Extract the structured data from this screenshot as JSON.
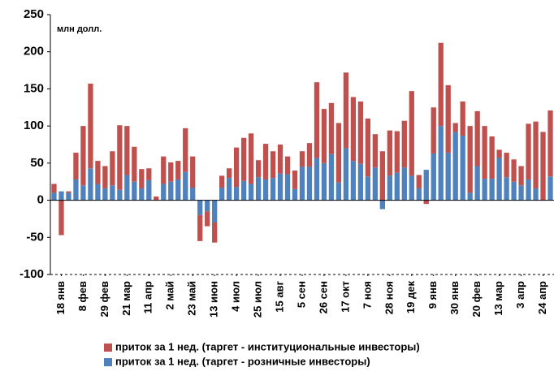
{
  "chart_data": {
    "type": "stacked_bar",
    "annotation": "млн долл.",
    "categories": [
      null,
      "18 янв",
      null,
      null,
      "8 фев",
      null,
      null,
      "29 фев",
      null,
      null,
      "21 мар",
      null,
      null,
      "11 апр",
      null,
      null,
      "2 май",
      null,
      null,
      "23 май",
      null,
      null,
      "13 июн",
      null,
      null,
      "4 июл",
      null,
      null,
      "25 июл",
      null,
      null,
      "15 авг",
      null,
      null,
      "5 сен",
      null,
      null,
      "26 сен",
      null,
      null,
      "17 окт",
      null,
      null,
      "7 ноя",
      null,
      null,
      "28 ноя",
      null,
      null,
      "19 дек",
      null,
      null,
      "9 янв",
      null,
      null,
      "30 янв",
      null,
      null,
      "20 фев",
      null,
      null,
      "13 мар",
      null,
      null,
      "3 апр",
      null,
      null,
      "24 апр",
      null
    ],
    "series": [
      {
        "name": "приток за 1 нед. (таргет - розничные инвесторы)",
        "color": "#4f81bd",
        "values": [
          10,
          12,
          10,
          28,
          20,
          43,
          22,
          16,
          20,
          14,
          34,
          25,
          16,
          27,
          0,
          22,
          25,
          28,
          38,
          17,
          -20,
          -15,
          -30,
          17,
          30,
          18,
          26,
          22,
          31,
          28,
          30,
          36,
          35,
          15,
          45,
          45,
          57,
          50,
          62,
          24,
          70,
          53,
          49,
          32,
          44,
          -12,
          33,
          37,
          44,
          33,
          16,
          41,
          63,
          100,
          64,
          92,
          87,
          10,
          46,
          29,
          29,
          57,
          31,
          25,
          20,
          28,
          16,
          0,
          32
        ]
      },
      {
        "name": "приток за 1 нед. (таргет - институциональные  инвесторы)",
        "color": "#c0504d",
        "values": [
          12,
          -47,
          2,
          36,
          80,
          114,
          31,
          30,
          46,
          87,
          66,
          47,
          26,
          16,
          5,
          37,
          26,
          25,
          59,
          42,
          -35,
          -20,
          -27,
          16,
          13,
          53,
          58,
          68,
          23,
          48,
          36,
          39,
          24,
          25,
          21,
          32,
          102,
          73,
          69,
          80,
          102,
          86,
          84,
          78,
          45,
          66,
          61,
          56,
          63,
          114,
          18,
          -5,
          62,
          112,
          91,
          12,
          46,
          90,
          74,
          71,
          57,
          11,
          33,
          30,
          26,
          75,
          90,
          92,
          89
        ]
      }
    ],
    "ylim": [
      -100,
      250
    ],
    "yticks": [
      -100,
      -50,
      0,
      50,
      100,
      150,
      200,
      250
    ],
    "grid": false
  }
}
